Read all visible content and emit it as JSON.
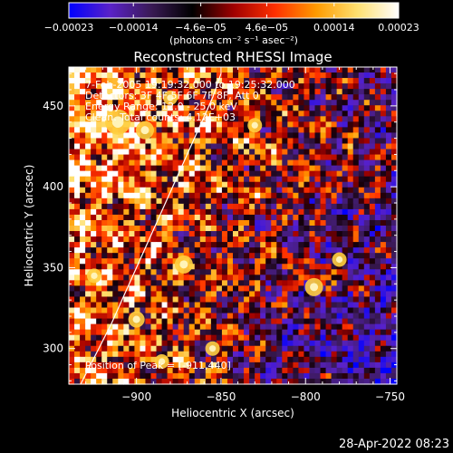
{
  "chart_data": {
    "type": "heatmap",
    "title": "Reconstructed RHESSI Image",
    "xlabel": "Heliocentric X (arcsec)",
    "ylabel": "Heliocentric Y (arcsec)",
    "xlim": [
      -940,
      -746
    ],
    "ylim": [
      278,
      474
    ],
    "x_ticks": [
      -900,
      -850,
      -800,
      -750
    ],
    "x_tick_labels": [
      "−900",
      "−850",
      "−800",
      "−750"
    ],
    "y_ticks": [
      300,
      350,
      400,
      450
    ],
    "y_tick_labels": [
      "300",
      "350",
      "400",
      "450"
    ],
    "colorbar": {
      "range": [
        -0.00023,
        0.00023
      ],
      "tick_values": [
        -0.00023,
        -0.00014,
        -4.6e-05,
        4.6e-05,
        0.00014,
        0.00023
      ],
      "tick_labels": [
        "−0.00023",
        "−0.00014",
        "−4.6e−05",
        "4.6e−05",
        "0.00014",
        "0.00023"
      ],
      "unit_label": "(photons cm⁻² s⁻¹ asec⁻²)",
      "colors": [
        "#0000ff",
        "#5a22c8",
        "#3a1a55",
        "#000000",
        "#a00000",
        "#ff3000",
        "#ff9a00",
        "#ffe070",
        "#ffffff"
      ]
    },
    "annotations": [
      "7-Feb-2005 19:19:32.000 to 19:25:32.000",
      "Detectors: 3F 4F 5F 6F 7F 8F, Att 0",
      "Energy Range: 12.0 - 25.0 keV",
      "Clean. Total counts: 4.12E+03"
    ],
    "peak_label": "Position of Peak = [-911,440]",
    "peak": [
      -911,
      440
    ],
    "limb_curve": [
      [
        -933,
        278
      ],
      [
        -915,
        315
      ],
      [
        -900,
        350
      ],
      [
        -885,
        385
      ],
      [
        -870,
        420
      ],
      [
        -855,
        455
      ],
      [
        -850,
        470
      ]
    ],
    "grid": false
  },
  "footer": {
    "timestamp": "28-Apr-2022 08:23"
  }
}
